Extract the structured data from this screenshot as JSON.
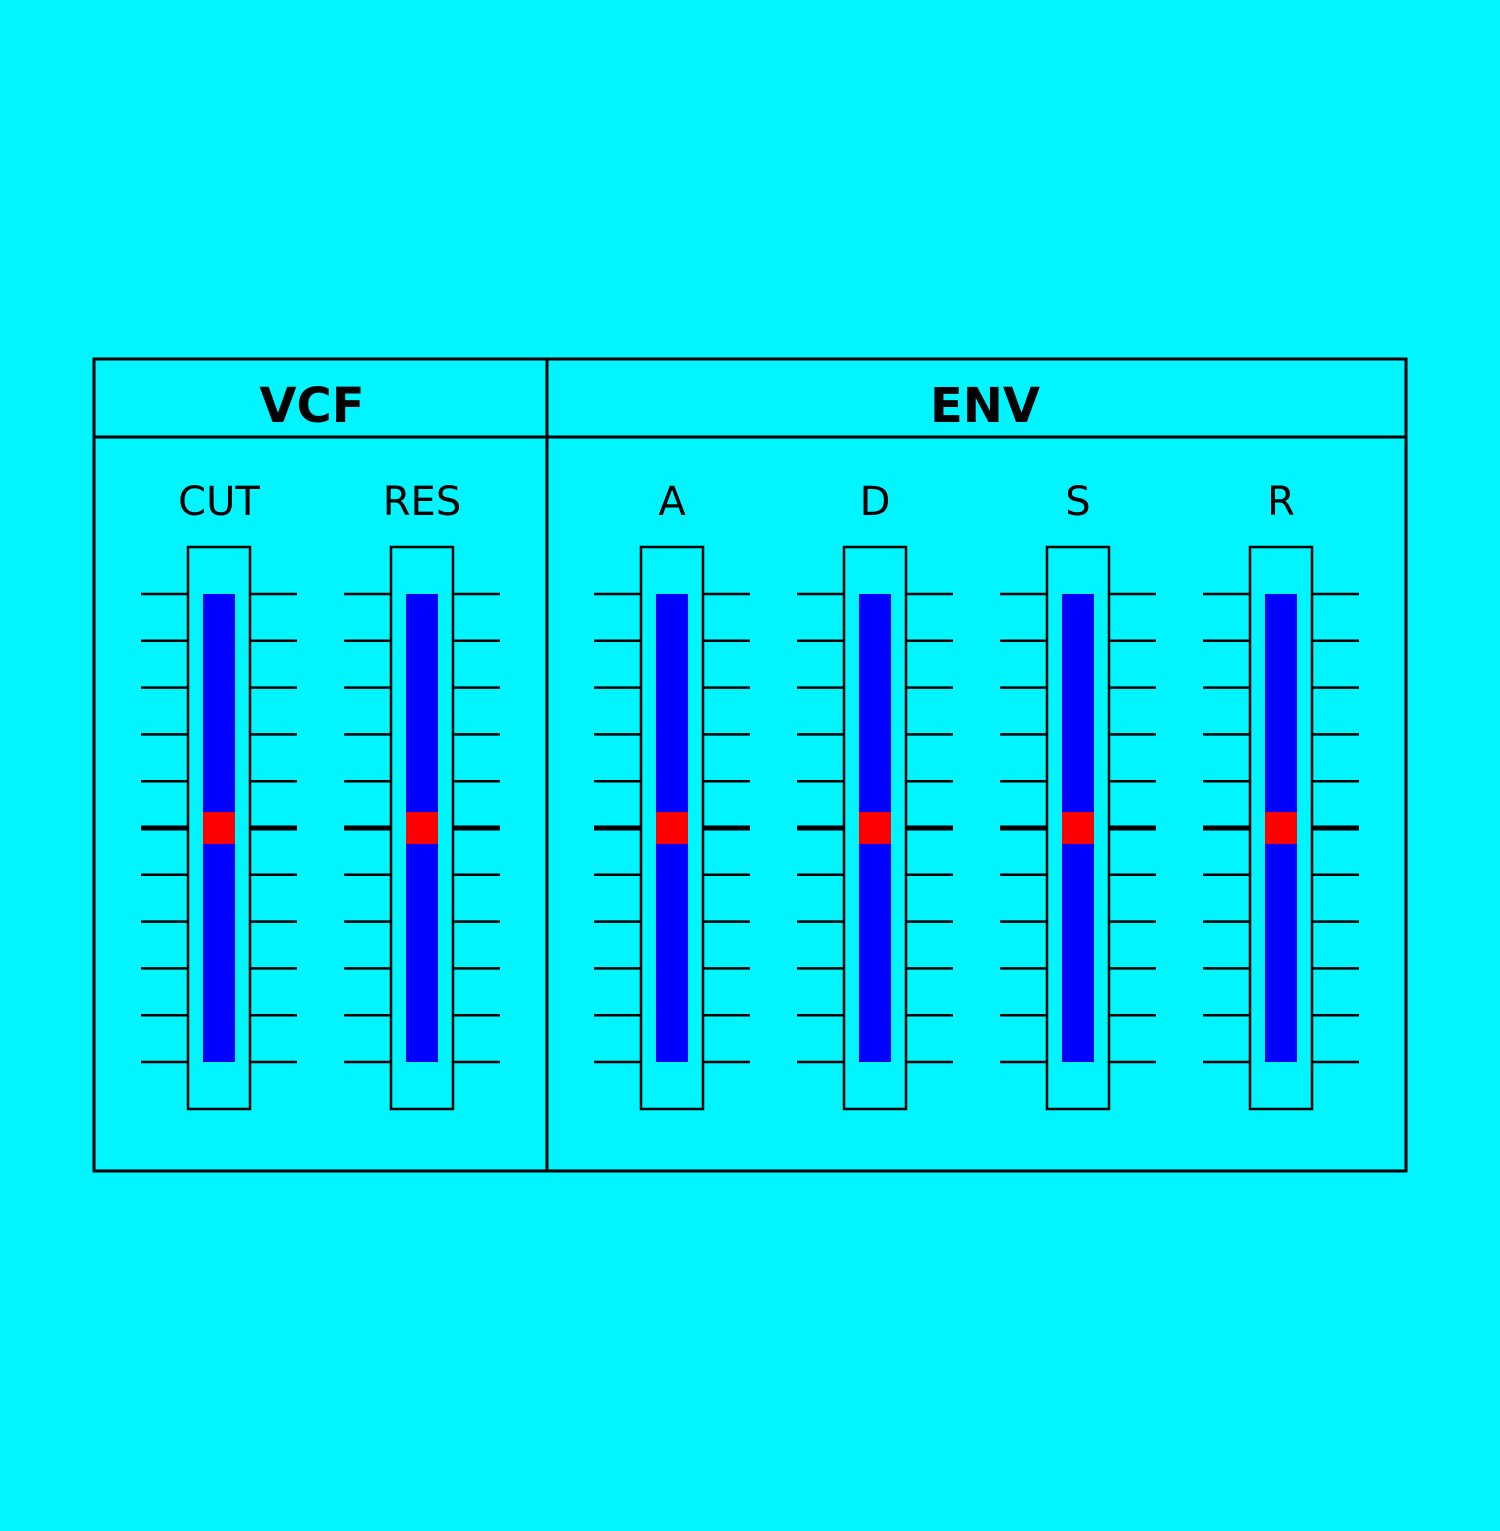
{
  "colors": {
    "background": "#00f5ff",
    "panel_line": "#000000",
    "slider_track": "#0000ff",
    "slider_handle": "#ff0000"
  },
  "sections": [
    {
      "title": "VCF",
      "sliders": [
        {
          "label": "CUT",
          "value": 0.5
        },
        {
          "label": "RES",
          "value": 0.5
        }
      ]
    },
    {
      "title": "ENV",
      "sliders": [
        {
          "label": "A",
          "value": 0.5
        },
        {
          "label": "D",
          "value": 0.5
        },
        {
          "label": "S",
          "value": 0.5
        },
        {
          "label": "R",
          "value": 0.5
        }
      ]
    }
  ],
  "scale": {
    "tick_count": 11,
    "major_tick_index": 5
  }
}
